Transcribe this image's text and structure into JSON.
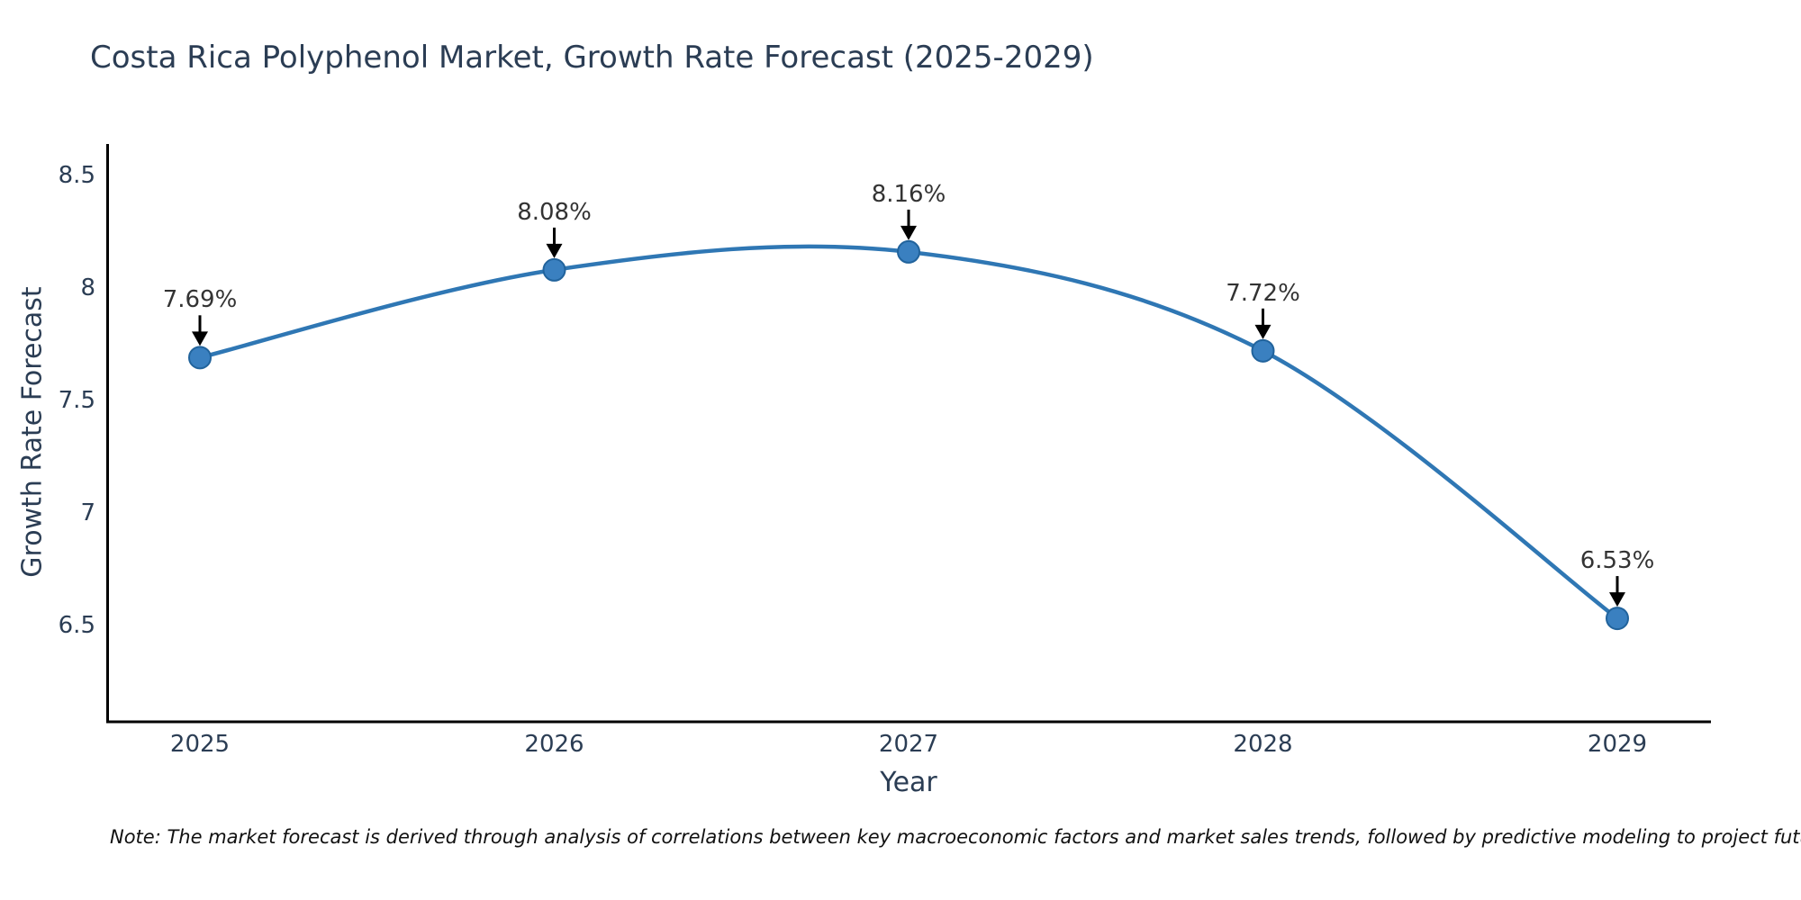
{
  "title": "Costa Rica Polyphenol Market, Growth Rate Forecast (2025-2029)",
  "note": "Note: The market forecast is derived through analysis of correlations between key macroeconomic factors and market sales trends, followed by predictive modeling to project future sales",
  "chart_data": {
    "type": "line",
    "categories": [
      "2025",
      "2026",
      "2027",
      "2028",
      "2029"
    ],
    "values": [
      7.69,
      8.08,
      8.16,
      7.72,
      6.53
    ],
    "point_labels": [
      "7.69%",
      "8.08%",
      "8.16%",
      "7.72%",
      "6.53%"
    ],
    "title": "Costa Rica Polyphenol Market, Growth Rate Forecast (2025-2029)",
    "xlabel": "Year",
    "ylabel": "Growth Rate Forecast",
    "ytick_labels": [
      "8.5",
      "8",
      "7.5",
      "7",
      "6.5"
    ],
    "yticks": [
      8.5,
      8.0,
      7.5,
      7.0,
      6.5
    ],
    "ylim": [
      6.07,
      8.64
    ],
    "grid": false,
    "legend": false,
    "line_shape": "spline",
    "annotation_style": "value label above each point with black downward arrow",
    "colors": {
      "line": "#2f77b4",
      "marker_fill": "#3a80c0",
      "marker_edge": "#21639c",
      "axis": "#000000",
      "arrow": "#000000",
      "text": "#2b3d54",
      "annotation_text": "#333333",
      "note_text": "#111111"
    }
  }
}
